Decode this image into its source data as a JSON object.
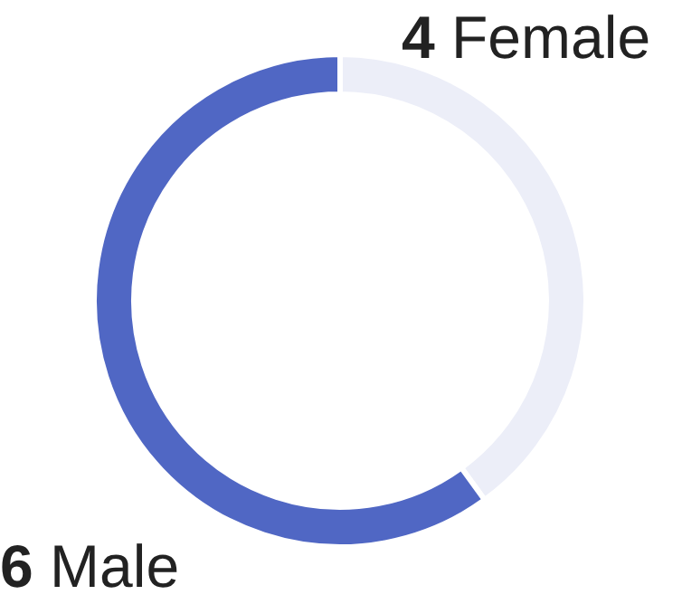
{
  "chart_data": {
    "type": "donut",
    "categories": [
      "Female",
      "Male"
    ],
    "values": [
      4,
      6
    ],
    "colors": [
      "#eceef8",
      "#5067c4"
    ],
    "data_labels": true
  }
}
